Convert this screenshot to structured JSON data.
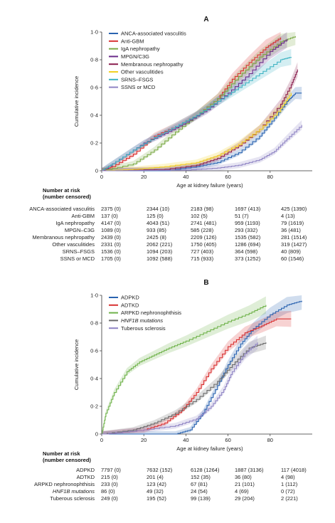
{
  "chart_data": [
    {
      "panel": "A",
      "type": "line",
      "xlabel": "Age at kidney failure (years)",
      "ylabel": "Cumulative incidence",
      "xlim": [
        0,
        100
      ],
      "ylim": [
        0,
        1
      ],
      "x_ticks": [
        "0",
        "20",
        "40",
        "60",
        "80"
      ],
      "y_ticks": [
        "0",
        "0·2",
        "0·4",
        "0·6",
        "0·8",
        "1·0"
      ],
      "legend_position": "top-left",
      "grid": false,
      "series": [
        {
          "name": "ANCA-associated vasculitis",
          "color": "#2a63b0",
          "x": [
            0,
            30,
            45,
            55,
            65,
            75,
            82,
            88,
            92,
            95
          ],
          "y": [
            0,
            0.0,
            0.03,
            0.06,
            0.13,
            0.25,
            0.38,
            0.5,
            0.56,
            0.56
          ]
        },
        {
          "name": "Anti-GBM",
          "color": "#d93232",
          "x": [
            0,
            5,
            15,
            25,
            35,
            45,
            55,
            62,
            70,
            78,
            85
          ],
          "y": [
            0,
            0.03,
            0.12,
            0.25,
            0.32,
            0.4,
            0.52,
            0.66,
            0.78,
            0.89,
            0.96
          ]
        },
        {
          "name": "IgA nephropathy",
          "color": "#7aa944",
          "x": [
            0,
            15,
            25,
            35,
            45,
            55,
            65,
            75,
            85,
            92
          ],
          "y": [
            0,
            0.05,
            0.15,
            0.28,
            0.4,
            0.52,
            0.68,
            0.82,
            0.93,
            0.97
          ]
        },
        {
          "name": "MPGN/C3G",
          "color": "#6a2c8a",
          "x": [
            0,
            10,
            20,
            30,
            40,
            50,
            60,
            70,
            80,
            88
          ],
          "y": [
            0,
            0.1,
            0.2,
            0.27,
            0.35,
            0.44,
            0.56,
            0.7,
            0.86,
            0.95
          ]
        },
        {
          "name": "Membranous nephropathy",
          "color": "#8a1e4e",
          "x": [
            0,
            30,
            45,
            55,
            65,
            75,
            85,
            90,
            93
          ],
          "y": [
            0,
            0.01,
            0.04,
            0.09,
            0.18,
            0.3,
            0.48,
            0.62,
            0.73
          ]
        },
        {
          "name": "Other vasculitides",
          "color": "#f2d022",
          "x": [
            0,
            15,
            30,
            45,
            55,
            65,
            75,
            85,
            90
          ],
          "y": [
            0,
            0.01,
            0.03,
            0.06,
            0.11,
            0.19,
            0.3,
            0.45,
            0.56
          ]
        },
        {
          "name": "SRNS–FSGS",
          "color": "#3bb2c2",
          "x": [
            0,
            5,
            15,
            25,
            35,
            45,
            55,
            65,
            75,
            85,
            90
          ],
          "y": [
            0,
            0.05,
            0.15,
            0.24,
            0.32,
            0.4,
            0.5,
            0.6,
            0.7,
            0.8,
            0.82
          ]
        },
        {
          "name": "SSNS or MCD",
          "color": "#8f84c4",
          "x": [
            0,
            40,
            55,
            65,
            75,
            82,
            88,
            95
          ],
          "y": [
            0,
            0.005,
            0.02,
            0.04,
            0.08,
            0.14,
            0.23,
            0.33
          ]
        }
      ],
      "risk_table": {
        "title_line1": "Number at risk",
        "title_line2": "(number censored)",
        "rows": [
          {
            "label": "ANCA-associated vasculitis",
            "values": [
              "2375 (0)",
              "2344 (10)",
              "2183 (98)",
              "1697 (413)",
              "425 (1390)"
            ]
          },
          {
            "label": "Anti-GBM",
            "values": [
              "137 (0)",
              "125 (0)",
              "102 (5)",
              "51 (7)",
              "4 (13)"
            ]
          },
          {
            "label": "IgA nephropathy",
            "values": [
              "4147 (0)",
              "4043 (51)",
              "2741 (481)",
              "959 (1193)",
              "79 (1619)"
            ]
          },
          {
            "label": "MPGN–C3G",
            "values": [
              "1089 (0)",
              "933 (85)",
              "585 (228)",
              "293 (332)",
              "36 (481)"
            ]
          },
          {
            "label": "Membranous nephropathy",
            "values": [
              "2439 (0)",
              "2425 (8)",
              "2209 (126)",
              "1535 (582)",
              "281 (1514)"
            ]
          },
          {
            "label": "Other vasculitides",
            "values": [
              "2331 (0)",
              "2062 (221)",
              "1750 (405)",
              "1286 (694)",
              "319 (1427)"
            ]
          },
          {
            "label": "SRNS–FSGS",
            "values": [
              "1536 (0)",
              "1094 (203)",
              "727 (403)",
              "364 (598)",
              "40 (809)"
            ]
          },
          {
            "label": "SSNS or MCD",
            "values": [
              "1705 (0)",
              "1092 (588)",
              "715 (933)",
              "373 (1252)",
              "60 (1546)"
            ]
          }
        ]
      }
    },
    {
      "panel": "B",
      "type": "line",
      "xlabel": "Age at kidney failure (years)",
      "ylabel": "Cumulative incidence",
      "xlim": [
        0,
        100
      ],
      "ylim": [
        0,
        1
      ],
      "x_ticks": [
        "0",
        "20",
        "40",
        "60",
        "80"
      ],
      "y_ticks": [
        "0",
        "0·2",
        "0·4",
        "0·6",
        "0·8",
        "1·0"
      ],
      "legend_position": "top-left",
      "grid": false,
      "series": [
        {
          "name": "ADPKD",
          "color": "#2a63b0",
          "x": [
            0,
            35,
            42,
            48,
            54,
            60,
            66,
            72,
            80,
            88,
            95
          ],
          "y": [
            0,
            0.0,
            0.03,
            0.15,
            0.32,
            0.5,
            0.65,
            0.76,
            0.86,
            0.93,
            0.96
          ]
        },
        {
          "name": "ADTKD",
          "color": "#d93232",
          "x": [
            0,
            20,
            30,
            38,
            45,
            52,
            60,
            68,
            76,
            83,
            90
          ],
          "y": [
            0,
            0.03,
            0.08,
            0.17,
            0.3,
            0.47,
            0.63,
            0.73,
            0.78,
            0.83,
            0.83
          ]
        },
        {
          "name": "ARPKD nephronophthisis",
          "color": "#6fb24a",
          "x": [
            0,
            2,
            6,
            12,
            18,
            25,
            32,
            40,
            50,
            60,
            70,
            78
          ],
          "y": [
            0,
            0.15,
            0.3,
            0.45,
            0.52,
            0.57,
            0.62,
            0.67,
            0.74,
            0.81,
            0.87,
            0.93
          ]
        },
        {
          "name": "HNF1B mutations",
          "color": "#6a6a6a",
          "x": [
            0,
            15,
            25,
            35,
            45,
            55,
            62,
            70,
            78
          ],
          "y": [
            0,
            0.03,
            0.08,
            0.15,
            0.25,
            0.38,
            0.5,
            0.62,
            0.66
          ]
        },
        {
          "name": "Tuberous sclerosis",
          "color": "#8f84c4",
          "x": [
            0,
            20,
            35,
            45,
            52,
            58,
            62,
            68,
            74
          ],
          "y": [
            0,
            0.03,
            0.06,
            0.11,
            0.2,
            0.32,
            0.45,
            0.58,
            0.66
          ]
        }
      ],
      "risk_table": {
        "title_line1": "Number at risk",
        "title_line2": "(number censored)",
        "rows": [
          {
            "label": "ADPKD",
            "values": [
              "7797 (0)",
              "7632 (152)",
              "6128 (1264)",
              "1887 (3136)",
              "117 (4018)"
            ]
          },
          {
            "label": "ADTKD",
            "values": [
              "215 (0)",
              "201 (4)",
              "152 (35)",
              "36 (80)",
              "4 (98)"
            ]
          },
          {
            "label": "ARPKD nephronophthisis",
            "values": [
              "233 (0)",
              "123 (42)",
              "67 (81)",
              "21 (101)",
              "1 (112)"
            ]
          },
          {
            "label": "HNF1B mutations",
            "values": [
              "86 (0)",
              "49 (32)",
              "24 (54)",
              "4 (69)",
              "0 (72)"
            ]
          },
          {
            "label": "Tuberous sclerosis",
            "values": [
              "249 (0)",
              "195 (52)",
              "99 (139)",
              "29 (204)",
              "2 (221)"
            ]
          }
        ]
      }
    }
  ]
}
